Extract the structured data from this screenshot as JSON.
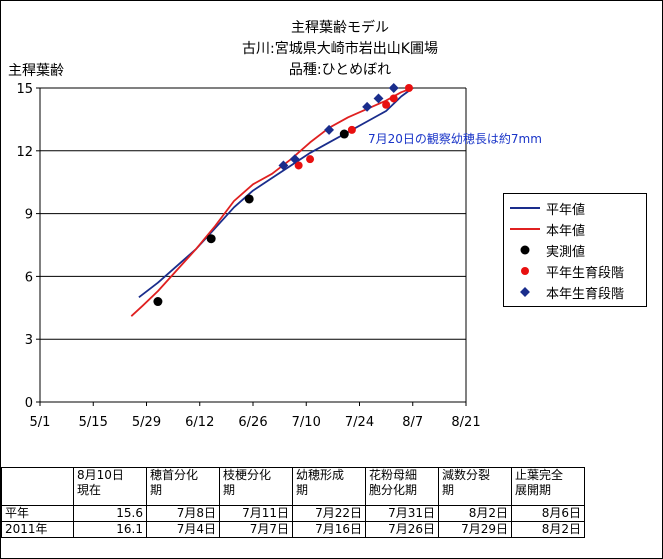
{
  "title": [
    "主稈葉齢モデル",
    "古川:宮城県大崎市岩出山K圃場",
    "品種:ひとめぼれ"
  ],
  "ylabel": "主稈葉齢",
  "note": "7月20日の観察幼穂長は約7mm",
  "legend": [
    "平年値",
    "本年値",
    "実測値",
    "平年生育段階",
    "本年生育段階"
  ],
  "colors": {
    "heinen": "#1a2d8c",
    "honnen": "#e02020",
    "jissoku": "#000000",
    "heinen_stage": "#e81010",
    "honnen_stage": "#1a2d8c"
  },
  "chart_data": {
    "type": "line",
    "ylim": [
      0,
      15
    ],
    "yticks": [
      0,
      3,
      6,
      9,
      12,
      15
    ],
    "xticks": [
      "5/1",
      "5/15",
      "5/29",
      "6/12",
      "6/26",
      "7/10",
      "7/24",
      "8/7",
      "8/21"
    ],
    "xlim": [
      "5/1",
      "8/21"
    ],
    "grid": "horizontal",
    "legend_position": "right",
    "series": [
      {
        "name": "平年値",
        "style": "line",
        "x": [
          "5/27",
          "6/1",
          "6/6",
          "6/11",
          "6/16",
          "6/21",
          "6/26",
          "7/1",
          "7/6",
          "7/11",
          "7/16",
          "7/21",
          "7/26",
          "7/31",
          "8/4",
          "8/7"
        ],
        "y": [
          5.0,
          5.7,
          6.5,
          7.3,
          8.3,
          9.3,
          10.1,
          10.7,
          11.3,
          11.9,
          12.4,
          12.9,
          13.4,
          13.9,
          14.6,
          15.0
        ]
      },
      {
        "name": "本年値",
        "style": "line",
        "x": [
          "5/25",
          "5/28",
          "6/1",
          "6/6",
          "6/11",
          "6/16",
          "6/21",
          "6/26",
          "7/1",
          "7/6",
          "7/11",
          "7/16",
          "7/21",
          "7/26",
          "7/31",
          "8/4",
          "8/7"
        ],
        "y": [
          4.1,
          4.6,
          5.3,
          6.3,
          7.3,
          8.4,
          9.6,
          10.4,
          10.9,
          11.6,
          12.4,
          13.1,
          13.6,
          14.0,
          14.4,
          14.8,
          15.0
        ]
      },
      {
        "name": "実測値",
        "style": "marker",
        "x": [
          "6/1",
          "6/15",
          "6/25",
          "7/20"
        ],
        "y": [
          4.8,
          7.8,
          9.7,
          12.8
        ]
      },
      {
        "name": "平年生育段階",
        "style": "marker",
        "x": [
          "7/8",
          "7/11",
          "7/22",
          "7/31",
          "8/2",
          "8/6"
        ],
        "y": [
          11.3,
          11.6,
          13.0,
          14.2,
          14.5,
          15.0
        ]
      },
      {
        "name": "本年生育段階",
        "style": "marker",
        "x": [
          "7/4",
          "7/7",
          "7/16",
          "7/26",
          "7/29",
          "8/2"
        ],
        "y": [
          11.3,
          11.6,
          13.0,
          14.1,
          14.5,
          15.0
        ]
      }
    ]
  },
  "table": {
    "headers": [
      "",
      "8月10日\n現在",
      "穂首分化\n期",
      "枝梗分化\n期",
      "幼穂形成\n期",
      "花粉母細\n胞分化期",
      "減数分裂\n期",
      "止葉完全\n展開期"
    ],
    "rows": [
      [
        "平年",
        "15.6",
        "7月8日",
        "7月11日",
        "7月22日",
        "7月31日",
        "8月2日",
        "8月6日"
      ],
      [
        "2011年",
        "16.1",
        "7月4日",
        "7月7日",
        "7月16日",
        "7月26日",
        "7月29日",
        "8月2日"
      ]
    ]
  }
}
